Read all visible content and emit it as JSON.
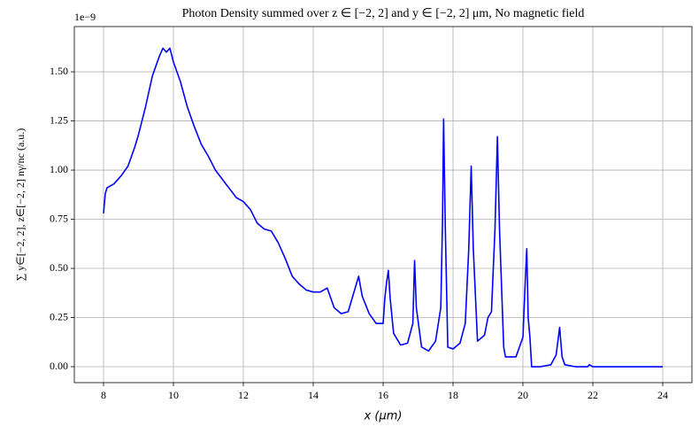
{
  "chart_data": {
    "type": "line",
    "title": "Photon Density summed over z ∈ [−2, 2] and y ∈ [−2, 2] μm, No magnetic field",
    "xlabel": "x (μm)",
    "ylabel": "∑ y∈[−2, 2], z∈[−2, 2]  nγ/nc (a.u.)",
    "y_offset_label": "1e−9",
    "x": [
      8.0,
      8.05,
      8.1,
      8.3,
      8.5,
      8.7,
      8.9,
      9.0,
      9.2,
      9.4,
      9.6,
      9.7,
      9.8,
      9.9,
      10.0,
      10.2,
      10.4,
      10.6,
      10.8,
      11.0,
      11.2,
      11.5,
      11.8,
      12.0,
      12.2,
      12.4,
      12.6,
      12.8,
      13.0,
      13.2,
      13.4,
      13.6,
      13.8,
      14.0,
      14.2,
      14.4,
      14.5,
      14.6,
      14.8,
      15.0,
      15.2,
      15.3,
      15.4,
      15.6,
      15.8,
      16.0,
      16.05,
      16.1,
      16.15,
      16.2,
      16.3,
      16.5,
      16.7,
      16.85,
      16.9,
      16.95,
      17.1,
      17.3,
      17.5,
      17.65,
      17.7,
      17.73,
      17.78,
      17.85,
      18.0,
      18.2,
      18.35,
      18.45,
      18.52,
      18.58,
      18.7,
      18.9,
      19.0,
      19.1,
      19.2,
      19.27,
      19.33,
      19.45,
      19.5,
      19.8,
      20.0,
      20.07,
      20.11,
      20.15,
      20.2,
      20.25,
      20.5,
      20.8,
      20.95,
      21.05,
      21.12,
      21.2,
      21.5,
      21.85,
      21.9,
      22.0,
      24.0
    ],
    "series": [
      {
        "name": "photon density",
        "color": "#0000ff",
        "values": [
          0.78,
          0.88,
          0.91,
          0.93,
          0.97,
          1.02,
          1.12,
          1.18,
          1.32,
          1.48,
          1.58,
          1.62,
          1.6,
          1.62,
          1.55,
          1.45,
          1.32,
          1.22,
          1.13,
          1.07,
          1.0,
          0.93,
          0.86,
          0.84,
          0.8,
          0.73,
          0.7,
          0.69,
          0.63,
          0.55,
          0.46,
          0.42,
          0.39,
          0.38,
          0.38,
          0.4,
          0.35,
          0.3,
          0.27,
          0.28,
          0.4,
          0.46,
          0.36,
          0.27,
          0.22,
          0.22,
          0.35,
          0.43,
          0.49,
          0.35,
          0.17,
          0.11,
          0.12,
          0.22,
          0.54,
          0.3,
          0.1,
          0.08,
          0.13,
          0.3,
          0.75,
          1.26,
          0.7,
          0.1,
          0.09,
          0.12,
          0.22,
          0.6,
          1.02,
          0.6,
          0.13,
          0.16,
          0.25,
          0.28,
          0.7,
          1.17,
          0.7,
          0.1,
          0.05,
          0.05,
          0.15,
          0.45,
          0.6,
          0.25,
          0.15,
          0.0,
          0.0,
          0.01,
          0.06,
          0.2,
          0.05,
          0.01,
          0.0,
          0.0,
          0.01,
          0.0,
          0.0
        ]
      }
    ],
    "xlim": [
      7.165,
      24.835
    ],
    "xticks": [
      8,
      10,
      12,
      14,
      16,
      18,
      20,
      22,
      24
    ],
    "ylim": [
      -0.081,
      1.73
    ],
    "yticks": [
      {
        "value": 0,
        "label": "0.00"
      },
      {
        "value": 0.25,
        "label": "0.25"
      },
      {
        "value": 0.5,
        "label": "0.50"
      },
      {
        "value": 0.75,
        "label": "0.75"
      },
      {
        "value": 1,
        "label": "1.00"
      },
      {
        "value": 1.25,
        "label": "1.25"
      },
      {
        "value": 1.5,
        "label": "1.50"
      }
    ],
    "grid": true
  }
}
